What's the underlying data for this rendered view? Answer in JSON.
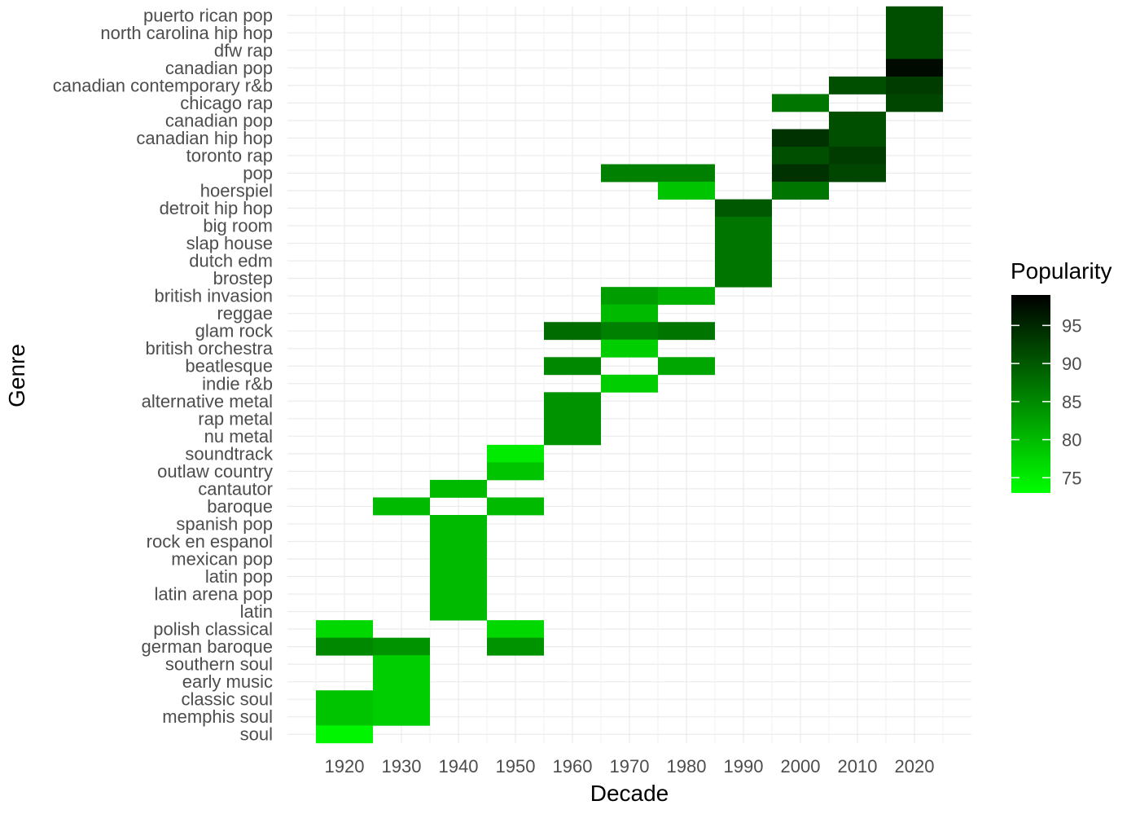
{
  "chart_data": {
    "type": "heatmap",
    "xlabel": "Decade",
    "ylabel": "Genre",
    "x": [
      "1920",
      "1930",
      "1940",
      "1950",
      "1960",
      "1970",
      "1980",
      "1990",
      "2000",
      "2010",
      "2020"
    ],
    "y": [
      "puerto rican pop",
      "north carolina hip hop",
      "dfw rap",
      "canadian pop",
      "canadian contemporary r&b",
      "chicago rap",
      "canadian pop",
      "canadian hip hop",
      "toronto rap",
      "pop",
      "hoerspiel",
      "detroit hip hop",
      "big room",
      "slap house",
      "dutch edm",
      "brostep",
      "british invasion",
      "reggae",
      "glam rock",
      "british orchestra",
      "beatlesque",
      "indie r&b",
      "alternative metal",
      "rap metal",
      "nu metal",
      "soundtrack",
      "outlaw country",
      "cantautor",
      "baroque",
      "spanish pop",
      "rock en espanol",
      "mexican pop",
      "latin pop",
      "latin arena pop",
      "latin",
      "polish classical",
      "german baroque",
      "southern soul",
      "early music",
      "classic soul",
      "memphis soul",
      "soul"
    ],
    "cells": [
      {
        "genre_index": 0,
        "x": "2020",
        "value": 91
      },
      {
        "genre_index": 1,
        "x": "2020",
        "value": 91
      },
      {
        "genre_index": 2,
        "x": "2020",
        "value": 91
      },
      {
        "genre_index": 3,
        "x": "2020",
        "value": 98
      },
      {
        "genre_index": 4,
        "x": "2010",
        "value": 91
      },
      {
        "genre_index": 4,
        "x": "2020",
        "value": 93
      },
      {
        "genre_index": 5,
        "x": "2000",
        "value": 87
      },
      {
        "genre_index": 5,
        "x": "2020",
        "value": 92
      },
      {
        "genre_index": 6,
        "x": "2010",
        "value": 91
      },
      {
        "genre_index": 7,
        "x": "2000",
        "value": 94
      },
      {
        "genre_index": 7,
        "x": "2010",
        "value": 91
      },
      {
        "genre_index": 8,
        "x": "2000",
        "value": 91
      },
      {
        "genre_index": 8,
        "x": "2010",
        "value": 93
      },
      {
        "genre_index": 9,
        "x": "1970",
        "value": 86
      },
      {
        "genre_index": 9,
        "x": "1980",
        "value": 86
      },
      {
        "genre_index": 9,
        "x": "2000",
        "value": 94
      },
      {
        "genre_index": 9,
        "x": "2010",
        "value": 92
      },
      {
        "genre_index": 10,
        "x": "1980",
        "value": 79
      },
      {
        "genre_index": 10,
        "x": "2000",
        "value": 87
      },
      {
        "genre_index": 11,
        "x": "1990",
        "value": 90
      },
      {
        "genre_index": 12,
        "x": "1990",
        "value": 87
      },
      {
        "genre_index": 13,
        "x": "1990",
        "value": 87
      },
      {
        "genre_index": 14,
        "x": "1990",
        "value": 87
      },
      {
        "genre_index": 15,
        "x": "1990",
        "value": 87
      },
      {
        "genre_index": 16,
        "x": "1970",
        "value": 83
      },
      {
        "genre_index": 16,
        "x": "1980",
        "value": 81
      },
      {
        "genre_index": 17,
        "x": "1970",
        "value": 80
      },
      {
        "genre_index": 18,
        "x": "1960",
        "value": 88
      },
      {
        "genre_index": 18,
        "x": "1970",
        "value": 86
      },
      {
        "genre_index": 18,
        "x": "1980",
        "value": 87
      },
      {
        "genre_index": 19,
        "x": "1970",
        "value": 78
      },
      {
        "genre_index": 20,
        "x": "1960",
        "value": 85
      },
      {
        "genre_index": 20,
        "x": "1980",
        "value": 82
      },
      {
        "genre_index": 21,
        "x": "1970",
        "value": 78
      },
      {
        "genre_index": 22,
        "x": "1960",
        "value": 84
      },
      {
        "genre_index": 23,
        "x": "1960",
        "value": 84
      },
      {
        "genre_index": 24,
        "x": "1960",
        "value": 84
      },
      {
        "genre_index": 25,
        "x": "1950",
        "value": 75
      },
      {
        "genre_index": 26,
        "x": "1950",
        "value": 79
      },
      {
        "genre_index": 27,
        "x": "1940",
        "value": 80
      },
      {
        "genre_index": 28,
        "x": "1930",
        "value": 80
      },
      {
        "genre_index": 28,
        "x": "1950",
        "value": 80
      },
      {
        "genre_index": 29,
        "x": "1940",
        "value": 80
      },
      {
        "genre_index": 30,
        "x": "1940",
        "value": 80
      },
      {
        "genre_index": 31,
        "x": "1940",
        "value": 80
      },
      {
        "genre_index": 32,
        "x": "1940",
        "value": 80
      },
      {
        "genre_index": 33,
        "x": "1940",
        "value": 80
      },
      {
        "genre_index": 34,
        "x": "1940",
        "value": 80
      },
      {
        "genre_index": 35,
        "x": "1920",
        "value": 77
      },
      {
        "genre_index": 35,
        "x": "1950",
        "value": 77
      },
      {
        "genre_index": 36,
        "x": "1920",
        "value": 85
      },
      {
        "genre_index": 36,
        "x": "1930",
        "value": 84
      },
      {
        "genre_index": 36,
        "x": "1950",
        "value": 84
      },
      {
        "genre_index": 37,
        "x": "1930",
        "value": 78
      },
      {
        "genre_index": 38,
        "x": "1930",
        "value": 78
      },
      {
        "genre_index": 39,
        "x": "1920",
        "value": 79
      },
      {
        "genre_index": 39,
        "x": "1930",
        "value": 78
      },
      {
        "genre_index": 40,
        "x": "1920",
        "value": 79
      },
      {
        "genre_index": 40,
        "x": "1930",
        "value": 78
      },
      {
        "genre_index": 41,
        "x": "1920",
        "value": 74
      }
    ],
    "legend": {
      "title": "Popularity",
      "placement": "right",
      "range": [
        73,
        99
      ],
      "ticks": [
        75,
        80,
        85,
        90,
        95
      ],
      "low_color": "#00ff00",
      "high_color": "#000000"
    },
    "grid": true
  }
}
